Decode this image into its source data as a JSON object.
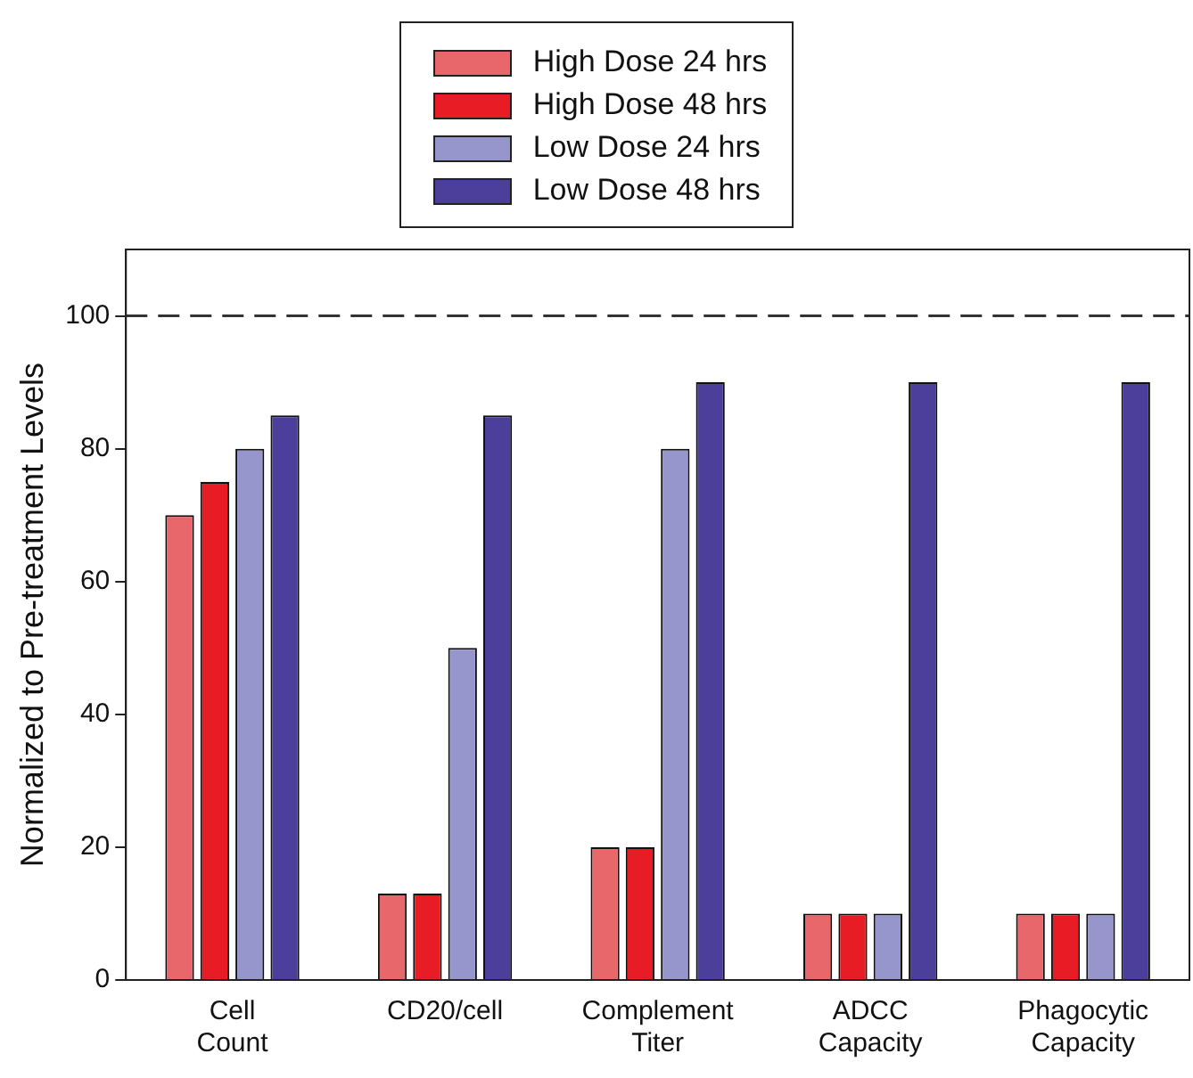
{
  "chart_data": {
    "type": "bar",
    "ylabel": "Normalized to Pre-treatment Levels",
    "categories": [
      "Cell Count",
      "CD20/cell",
      "Complement Titer",
      "ADCC Capacity",
      "Phagocytic Capacity"
    ],
    "series": [
      {
        "name": "High Dose 24 hrs",
        "color": "#e8676b",
        "values": [
          70,
          13,
          20,
          10,
          10
        ]
      },
      {
        "name": "High Dose 48 hrs",
        "color": "#e81c24",
        "values": [
          75,
          13,
          20,
          10,
          10
        ]
      },
      {
        "name": "Low Dose 24 hrs",
        "color": "#9696cc",
        "values": [
          80,
          50,
          80,
          10,
          10
        ]
      },
      {
        "name": "Low Dose 48 hrs",
        "color": "#4b3f9b",
        "values": [
          85,
          85,
          90,
          90,
          90
        ]
      }
    ],
    "ylim": [
      0,
      110
    ],
    "yticks": [
      0,
      20,
      40,
      60,
      80,
      100
    ],
    "grid": false,
    "legend": "top",
    "ref_lines": [
      {
        "axis": "y",
        "value": 100,
        "line_style": "dashed",
        "color": "#333333"
      }
    ]
  }
}
